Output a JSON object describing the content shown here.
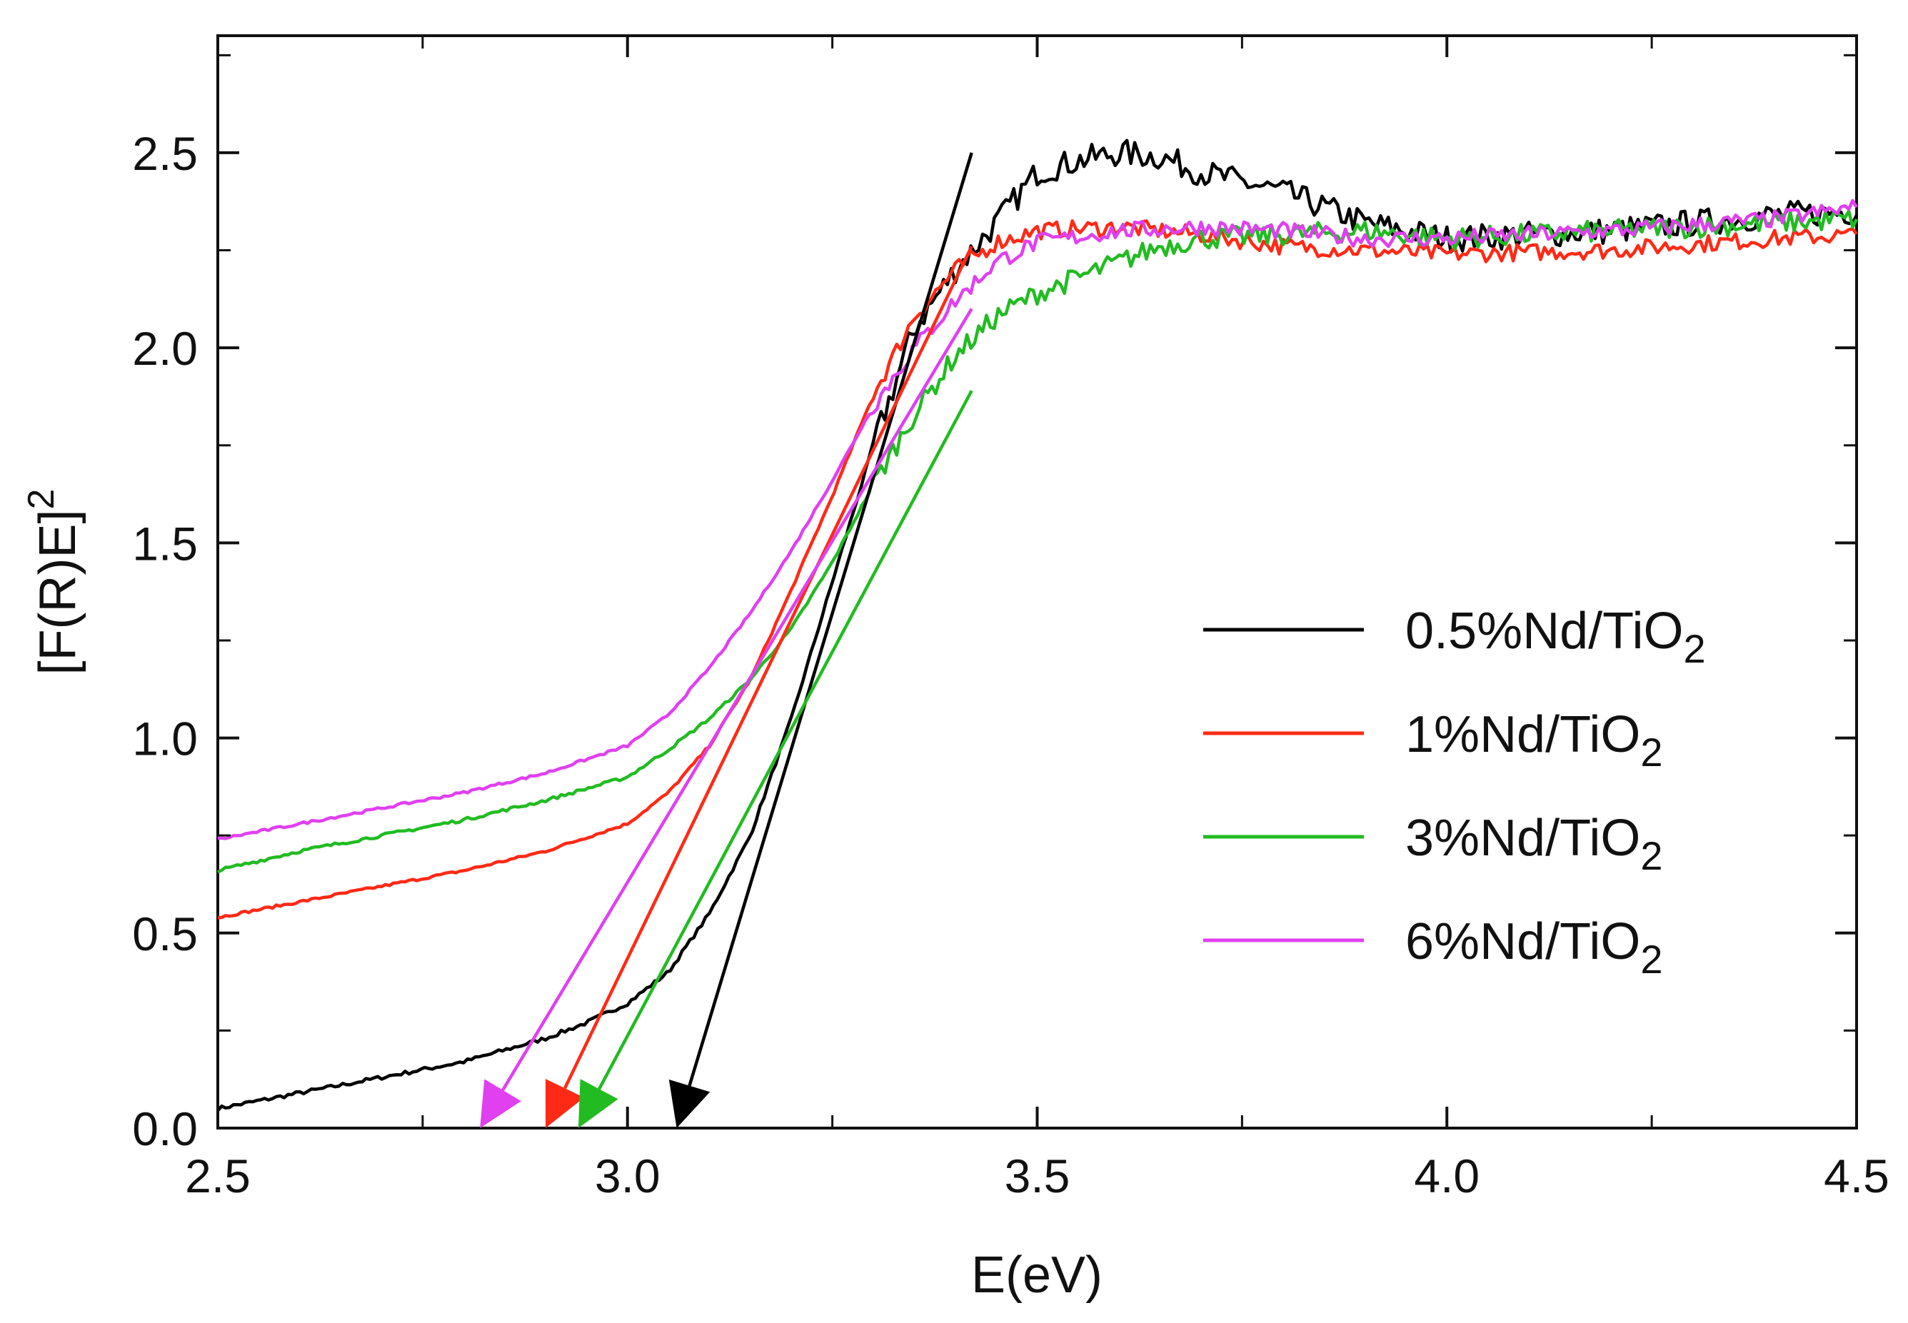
{
  "chart_data": {
    "type": "line",
    "title": "",
    "xlabel": "E(eV)",
    "ylabel_main": "[F(R)E]",
    "ylabel_sup": "2",
    "xlim": [
      2.5,
      4.5
    ],
    "ylim": [
      0.0,
      2.8
    ],
    "x_ticks": [
      2.5,
      3.0,
      3.5,
      4.0,
      4.5
    ],
    "x_tick_labels": [
      "2.5",
      "3.0",
      "3.5",
      "4.0",
      "4.5"
    ],
    "y_ticks": [
      0.0,
      0.5,
      1.0,
      1.5,
      2.0,
      2.5
    ],
    "y_tick_labels": [
      "0.0",
      "0.5",
      "1.0",
      "1.5",
      "2.0",
      "2.5"
    ],
    "legend_position": "center-right",
    "grid": false,
    "series": [
      {
        "name": "0.5%Nd/TiO2",
        "legend_main": "0.5%Nd/TiO",
        "legend_sub": "2",
        "color": "#000000",
        "noise": 0.035,
        "x": [
          2.5,
          2.6,
          2.7,
          2.8,
          2.9,
          2.95,
          3.0,
          3.05,
          3.1,
          3.15,
          3.2,
          3.25,
          3.3,
          3.35,
          3.4,
          3.45,
          3.5,
          3.55,
          3.6,
          3.65,
          3.7,
          3.8,
          3.9,
          4.0,
          4.2,
          4.4,
          4.5
        ],
        "y": [
          0.05,
          0.09,
          0.13,
          0.17,
          0.23,
          0.27,
          0.32,
          0.4,
          0.55,
          0.75,
          1.05,
          1.4,
          1.75,
          2.05,
          2.2,
          2.32,
          2.45,
          2.48,
          2.5,
          2.49,
          2.45,
          2.4,
          2.32,
          2.28,
          2.3,
          2.34,
          2.35
        ]
      },
      {
        "name": "1%Nd/TiO2",
        "legend_main": "1%Nd/TiO",
        "legend_sub": "2",
        "color": "#ff2a16",
        "noise": 0.022,
        "x": [
          2.5,
          2.6,
          2.7,
          2.8,
          2.9,
          3.0,
          3.05,
          3.1,
          3.15,
          3.2,
          3.25,
          3.3,
          3.35,
          3.4,
          3.45,
          3.5,
          3.6,
          3.7,
          3.8,
          3.9,
          4.0,
          4.2,
          4.4,
          4.5
        ],
        "y": [
          0.54,
          0.58,
          0.62,
          0.66,
          0.71,
          0.78,
          0.86,
          0.98,
          1.15,
          1.38,
          1.62,
          1.88,
          2.08,
          2.2,
          2.27,
          2.3,
          2.31,
          2.29,
          2.26,
          2.25,
          2.24,
          2.25,
          2.28,
          2.29
        ]
      },
      {
        "name": "3%Nd/TiO2",
        "legend_main": "3%Nd/TiO",
        "legend_sub": "2",
        "color": "#22bb22",
        "noise": 0.028,
        "x": [
          2.5,
          2.6,
          2.7,
          2.8,
          2.9,
          3.0,
          3.05,
          3.1,
          3.15,
          3.2,
          3.25,
          3.3,
          3.35,
          3.4,
          3.45,
          3.5,
          3.55,
          3.6,
          3.65,
          3.7,
          3.8,
          3.9,
          4.0,
          4.2,
          4.4,
          4.5
        ],
        "y": [
          0.66,
          0.71,
          0.75,
          0.79,
          0.84,
          0.9,
          0.97,
          1.05,
          1.15,
          1.28,
          1.45,
          1.65,
          1.83,
          1.98,
          2.08,
          2.14,
          2.18,
          2.22,
          2.26,
          2.28,
          2.29,
          2.3,
          2.28,
          2.3,
          2.32,
          2.33
        ]
      },
      {
        "name": "6%Nd/TiO2",
        "legend_main": "6%Nd/TiO",
        "legend_sub": "2",
        "color": "#e040f0",
        "noise": 0.022,
        "x": [
          2.5,
          2.6,
          2.7,
          2.8,
          2.9,
          3.0,
          3.05,
          3.1,
          3.15,
          3.2,
          3.25,
          3.3,
          3.35,
          3.4,
          3.45,
          3.5,
          3.6,
          3.7,
          3.8,
          3.9,
          4.0,
          4.2,
          4.4,
          4.5
        ],
        "y": [
          0.74,
          0.78,
          0.82,
          0.86,
          0.91,
          0.98,
          1.06,
          1.18,
          1.32,
          1.48,
          1.66,
          1.85,
          2.0,
          2.12,
          2.22,
          2.27,
          2.3,
          2.31,
          2.3,
          2.28,
          2.28,
          2.3,
          2.33,
          2.36
        ]
      }
    ],
    "tangent_arrows": [
      {
        "series": "0.5%Nd/TiO2",
        "color": "#000000",
        "from": [
          3.42,
          2.5
        ],
        "to": [
          3.06,
          0.0
        ]
      },
      {
        "series": "1%Nd/TiO2",
        "color": "#ff2a16",
        "from": [
          3.42,
          2.26
        ],
        "to": [
          2.9,
          0.0
        ]
      },
      {
        "series": "3%Nd/TiO2",
        "color": "#22bb22",
        "from": [
          3.42,
          1.89
        ],
        "to": [
          2.94,
          0.0
        ]
      },
      {
        "series": "6%Nd/TiO2",
        "color": "#e040f0",
        "from": [
          3.42,
          2.1
        ],
        "to": [
          2.82,
          0.0
        ]
      }
    ]
  }
}
